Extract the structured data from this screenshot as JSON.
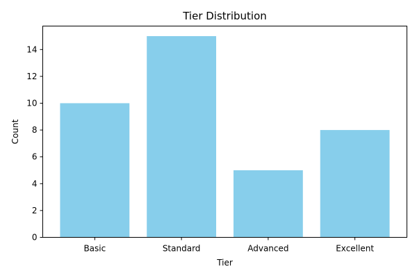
{
  "chart_data": {
    "type": "bar",
    "title": "Tier Distribution",
    "xlabel": "Tier",
    "ylabel": "Count",
    "categories": [
      "Basic",
      "Standard",
      "Advanced",
      "Excellent"
    ],
    "values": [
      10,
      15,
      5,
      8
    ],
    "ylim": [
      0,
      15.75
    ],
    "yticks": [
      0,
      2,
      4,
      6,
      8,
      10,
      12,
      14
    ],
    "bar_color": "#87CEEB",
    "grid": false,
    "legend": "none"
  }
}
